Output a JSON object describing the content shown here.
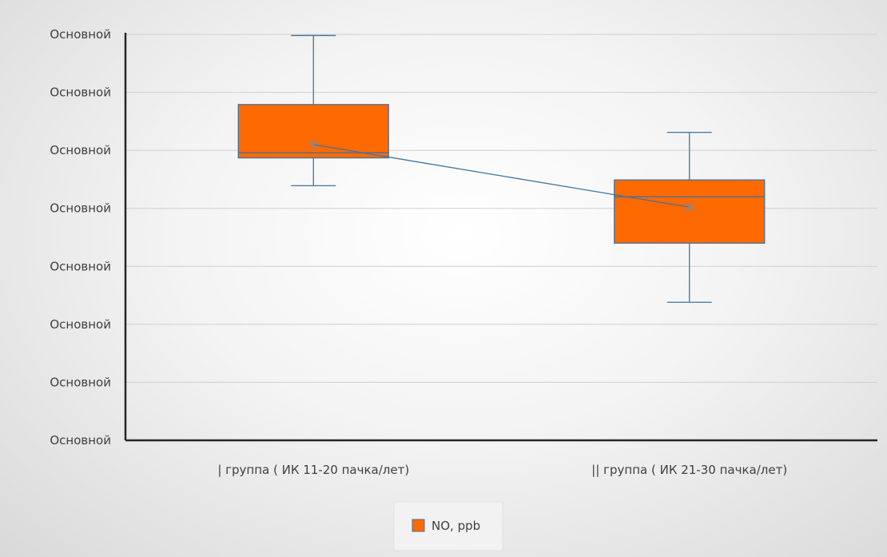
{
  "chart_data": {
    "type": "boxplot",
    "title": "",
    "xlabel": "",
    "ylabel": "",
    "ylim": [
      0,
      7
    ],
    "ytick_values": [
      0,
      1,
      2,
      3,
      4,
      5,
      6,
      7
    ],
    "ytick_labels": [
      "Основной",
      "Основной",
      "Основной",
      "Основной",
      "Основной",
      "Основной",
      "Основной",
      "Основной"
    ],
    "grid": true,
    "legend_position": "bottom",
    "categories": [
      "| группа ( ИК 11-20 пачка/лет)",
      "|| группа ( ИК 21-30 пачка/лет)"
    ],
    "series": [
      {
        "name": "NO, ppb",
        "color": "#ff6a00",
        "boxes": [
          {
            "min": 4.39,
            "q1": 4.87,
            "median": 4.96,
            "q3": 5.79,
            "max": 6.98,
            "mean": 5.1
          },
          {
            "min": 2.38,
            "q1": 3.4,
            "median": 4.2,
            "q3": 4.49,
            "max": 5.31,
            "mean": 4.02
          }
        ],
        "mean_line": true
      }
    ]
  }
}
